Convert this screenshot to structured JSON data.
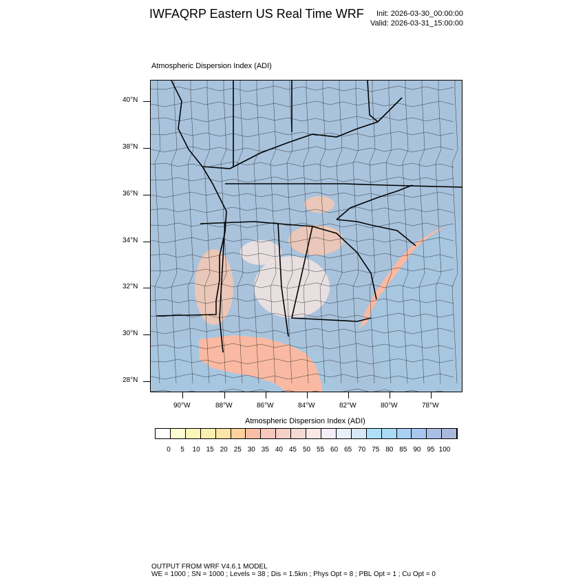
{
  "header": {
    "title": "IWFAQRP Eastern US Real Time WRF",
    "init": "Init: 2026-03-30_00:00:00",
    "valid": "Valid: 2026-03-31_15:00:00"
  },
  "map": {
    "plot_title": "Atmospheric Dispersion Index   (ADI)",
    "lat_labels": [
      "40°N",
      "38°N",
      "36°N",
      "34°N",
      "32°N",
      "30°N",
      "28°N"
    ],
    "lon_labels": [
      "90°W",
      "88°W",
      "86°W",
      "84°W",
      "82°W",
      "80°W",
      "78°W"
    ],
    "colors": {
      "land_base": "#a9c3dd",
      "ocean": "#a7c6e0",
      "high_adi": "#f6c8b2",
      "mid_adi": "#f3e4e0",
      "gulf_warm": "#f9b9a2",
      "boundary": "#000000"
    }
  },
  "colorbar": {
    "title": "Atmospheric Dispersion Index  (ADI)",
    "labels": [
      "0",
      "5",
      "10",
      "15",
      "20",
      "25",
      "30",
      "35",
      "40",
      "45",
      "50",
      "55",
      "60",
      "65",
      "70",
      "75",
      "80",
      "85",
      "90",
      "95",
      "100"
    ],
    "colors": [
      "#ffffff",
      "#fdfbd0",
      "#fbf7b8",
      "#fbefb0",
      "#fde3a6",
      "#fcd29a",
      "#f8bfa6",
      "#f6c7bb",
      "#f5cfc8",
      "#f5dad4",
      "#f9e8e4",
      "#f4eef8",
      "#e9f0fa",
      "#d6e8f8",
      "#afe0f8",
      "#a8dcf4",
      "#a9d1f2",
      "#a8c6f0",
      "#a9bfe6",
      "#a9b9dc"
    ]
  },
  "footer": {
    "line1": "OUTPUT FROM WRF V4.6.1 MODEL",
    "line2": "WE = 1000 ; SN = 1000 ; Levels = 38 ; Dis = 1.5km ; Phys Opt = 8 ; PBL Opt = 1 ; Cu Opt = 0"
  }
}
